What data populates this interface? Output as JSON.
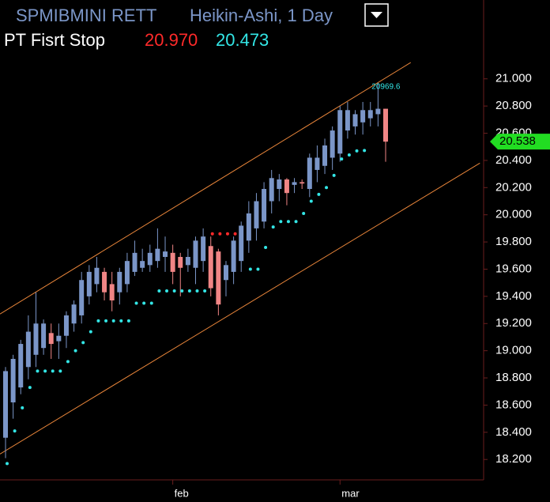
{
  "chart_data": {
    "type": "candlestick",
    "title": "SPMIBMINI RETT",
    "subtitle": "Heikin-Ashi, 1 Day",
    "legend": {
      "name": "PT Fisrt Stop",
      "upper": {
        "value": 20.97,
        "label": "20.970",
        "color": "#ff2a2a"
      },
      "lower": {
        "value": 20.473,
        "label": "20.473",
        "color": "#33e6e6"
      }
    },
    "categories": [
      null,
      null,
      null,
      null,
      null,
      null,
      null,
      null,
      null,
      null,
      null,
      null,
      null,
      null,
      null,
      null,
      null,
      null,
      null,
      null,
      null,
      null,
      "feb",
      null,
      null,
      null,
      null,
      null,
      null,
      null,
      null,
      null,
      null,
      null,
      null,
      null,
      null,
      null,
      null,
      null,
      null,
      null,
      null,
      null,
      "mar",
      null,
      null,
      null,
      null,
      null,
      null
    ],
    "open": [
      18.36,
      18.62,
      18.73,
      18.88,
      18.97,
      19.02,
      19.13,
      19.07,
      19.11,
      19.2,
      19.26,
      19.4,
      19.49,
      19.58,
      19.49,
      19.43,
      19.49,
      19.58,
      19.61,
      19.63,
      19.66,
      19.69,
      19.72,
      19.69,
      19.63,
      19.61,
      19.66,
      19.77,
      19.73,
      19.52,
      19.58,
      19.66,
      19.81,
      19.9,
      19.95,
      20.1,
      20.19,
      20.26,
      20.22,
      20.24,
      20.19,
      20.33,
      20.36,
      20.42,
      20.45,
      20.62,
      20.65,
      20.68,
      20.71,
      20.74,
      20.78
    ],
    "high": [
      18.88,
      18.97,
      19.08,
      19.26,
      19.43,
      19.23,
      19.2,
      19.2,
      19.29,
      19.37,
      19.58,
      19.63,
      19.69,
      19.61,
      19.58,
      19.61,
      19.72,
      19.81,
      19.75,
      19.78,
      19.9,
      19.84,
      19.78,
      19.72,
      19.75,
      19.84,
      19.9,
      19.84,
      19.75,
      19.66,
      19.84,
      19.95,
      20.1,
      20.16,
      20.24,
      20.33,
      20.3,
      20.27,
      20.27,
      20.26,
      20.45,
      20.51,
      20.56,
      20.65,
      20.8,
      20.83,
      20.77,
      20.83,
      20.83,
      20.97,
      20.78
    ],
    "low": [
      18.21,
      18.5,
      18.68,
      18.79,
      18.88,
      18.97,
      18.94,
      18.94,
      19.02,
      19.14,
      19.2,
      19.34,
      19.43,
      19.37,
      19.29,
      19.34,
      19.43,
      19.55,
      19.58,
      19.58,
      19.61,
      19.58,
      19.49,
      19.4,
      19.58,
      19.49,
      19.58,
      19.4,
      19.26,
      19.4,
      19.49,
      19.58,
      19.72,
      19.81,
      19.9,
      20.01,
      20.1,
      20.07,
      20.16,
      20.19,
      20.13,
      20.24,
      20.3,
      20.33,
      20.39,
      20.56,
      20.59,
      20.59,
      20.65,
      20.65,
      20.39
    ],
    "close": [
      18.85,
      18.94,
      19.05,
      19.14,
      19.2,
      19.2,
      19.05,
      19.11,
      19.26,
      19.34,
      19.52,
      19.58,
      19.61,
      19.43,
      19.37,
      19.58,
      19.66,
      19.72,
      19.66,
      19.72,
      19.75,
      19.73,
      19.58,
      19.61,
      19.69,
      19.81,
      19.84,
      19.46,
      19.34,
      19.63,
      19.81,
      19.92,
      20.01,
      20.1,
      20.19,
      20.27,
      20.26,
      20.16,
      20.24,
      20.23,
      20.42,
      20.42,
      20.51,
      20.62,
      20.77,
      20.77,
      20.74,
      20.77,
      20.77,
      20.78,
      20.538
    ],
    "up_color": "#7b96c8",
    "down_color": "#f08585",
    "stops": [
      {
        "color": "#33e6e6",
        "values": [
          18.17,
          18.41,
          18.58,
          18.73,
          18.85,
          18.85,
          18.85,
          18.85,
          18.92,
          19.0,
          19.06,
          19.14,
          19.22,
          19.22,
          19.22,
          19.22,
          19.22,
          19.35,
          19.35,
          19.35,
          19.44,
          19.44,
          19.44,
          19.44,
          19.44,
          19.44,
          19.44,
          null,
          null,
          null,
          null,
          null,
          19.6,
          19.6,
          19.76,
          19.91,
          19.95,
          19.95,
          19.95,
          20.01,
          20.1,
          20.15,
          20.2,
          20.29,
          20.41,
          20.44,
          20.47,
          20.473,
          null,
          null,
          null
        ]
      },
      {
        "color": "#ff2a2a",
        "values": [
          null,
          null,
          null,
          null,
          null,
          null,
          null,
          null,
          null,
          null,
          null,
          null,
          null,
          null,
          null,
          null,
          null,
          null,
          null,
          null,
          null,
          null,
          null,
          null,
          null,
          null,
          null,
          19.86,
          19.86,
          19.86,
          19.86,
          null,
          null,
          null,
          null,
          null,
          null,
          null,
          null,
          null,
          null,
          null,
          null,
          null,
          null,
          null,
          null,
          null,
          null,
          null,
          null
        ]
      }
    ],
    "channels": [
      {
        "color": "#e8853a",
        "x": [
          -0.73,
          53.3
        ],
        "values": [
          19.27,
          21.12
        ]
      },
      {
        "color": "#e8853a",
        "x": [
          -0.73,
          62.4
        ],
        "values": [
          18.24,
          20.38
        ]
      }
    ],
    "annotation": {
      "text": "20969.6",
      "x": 49
    },
    "last_price": 20.538,
    "last_price_color": "#22dd22",
    "ylim": [
      18.05,
      21.58
    ],
    "yticks": [
      {
        "value": 18.2,
        "label": "18.200"
      },
      {
        "value": 18.4,
        "label": "18.400"
      },
      {
        "value": 18.6,
        "label": "18.600"
      },
      {
        "value": 18.8,
        "label": "18.800"
      },
      {
        "value": 19,
        "label": "19.000"
      },
      {
        "value": 19.2,
        "label": "19.200"
      },
      {
        "value": 19.4,
        "label": "19.400"
      },
      {
        "value": 19.6,
        "label": "19.600"
      },
      {
        "value": 19.8,
        "label": "19.800"
      },
      {
        "value": 20,
        "label": "20.000"
      },
      {
        "value": 20.2,
        "label": "20.200"
      },
      {
        "value": 20.4,
        "label": "20.400"
      },
      {
        "value": 20.6,
        "label": "20.600"
      },
      {
        "value": 20.8,
        "label": "20.800"
      },
      {
        "value": 21,
        "label": "21.000"
      }
    ],
    "grid": false
  }
}
